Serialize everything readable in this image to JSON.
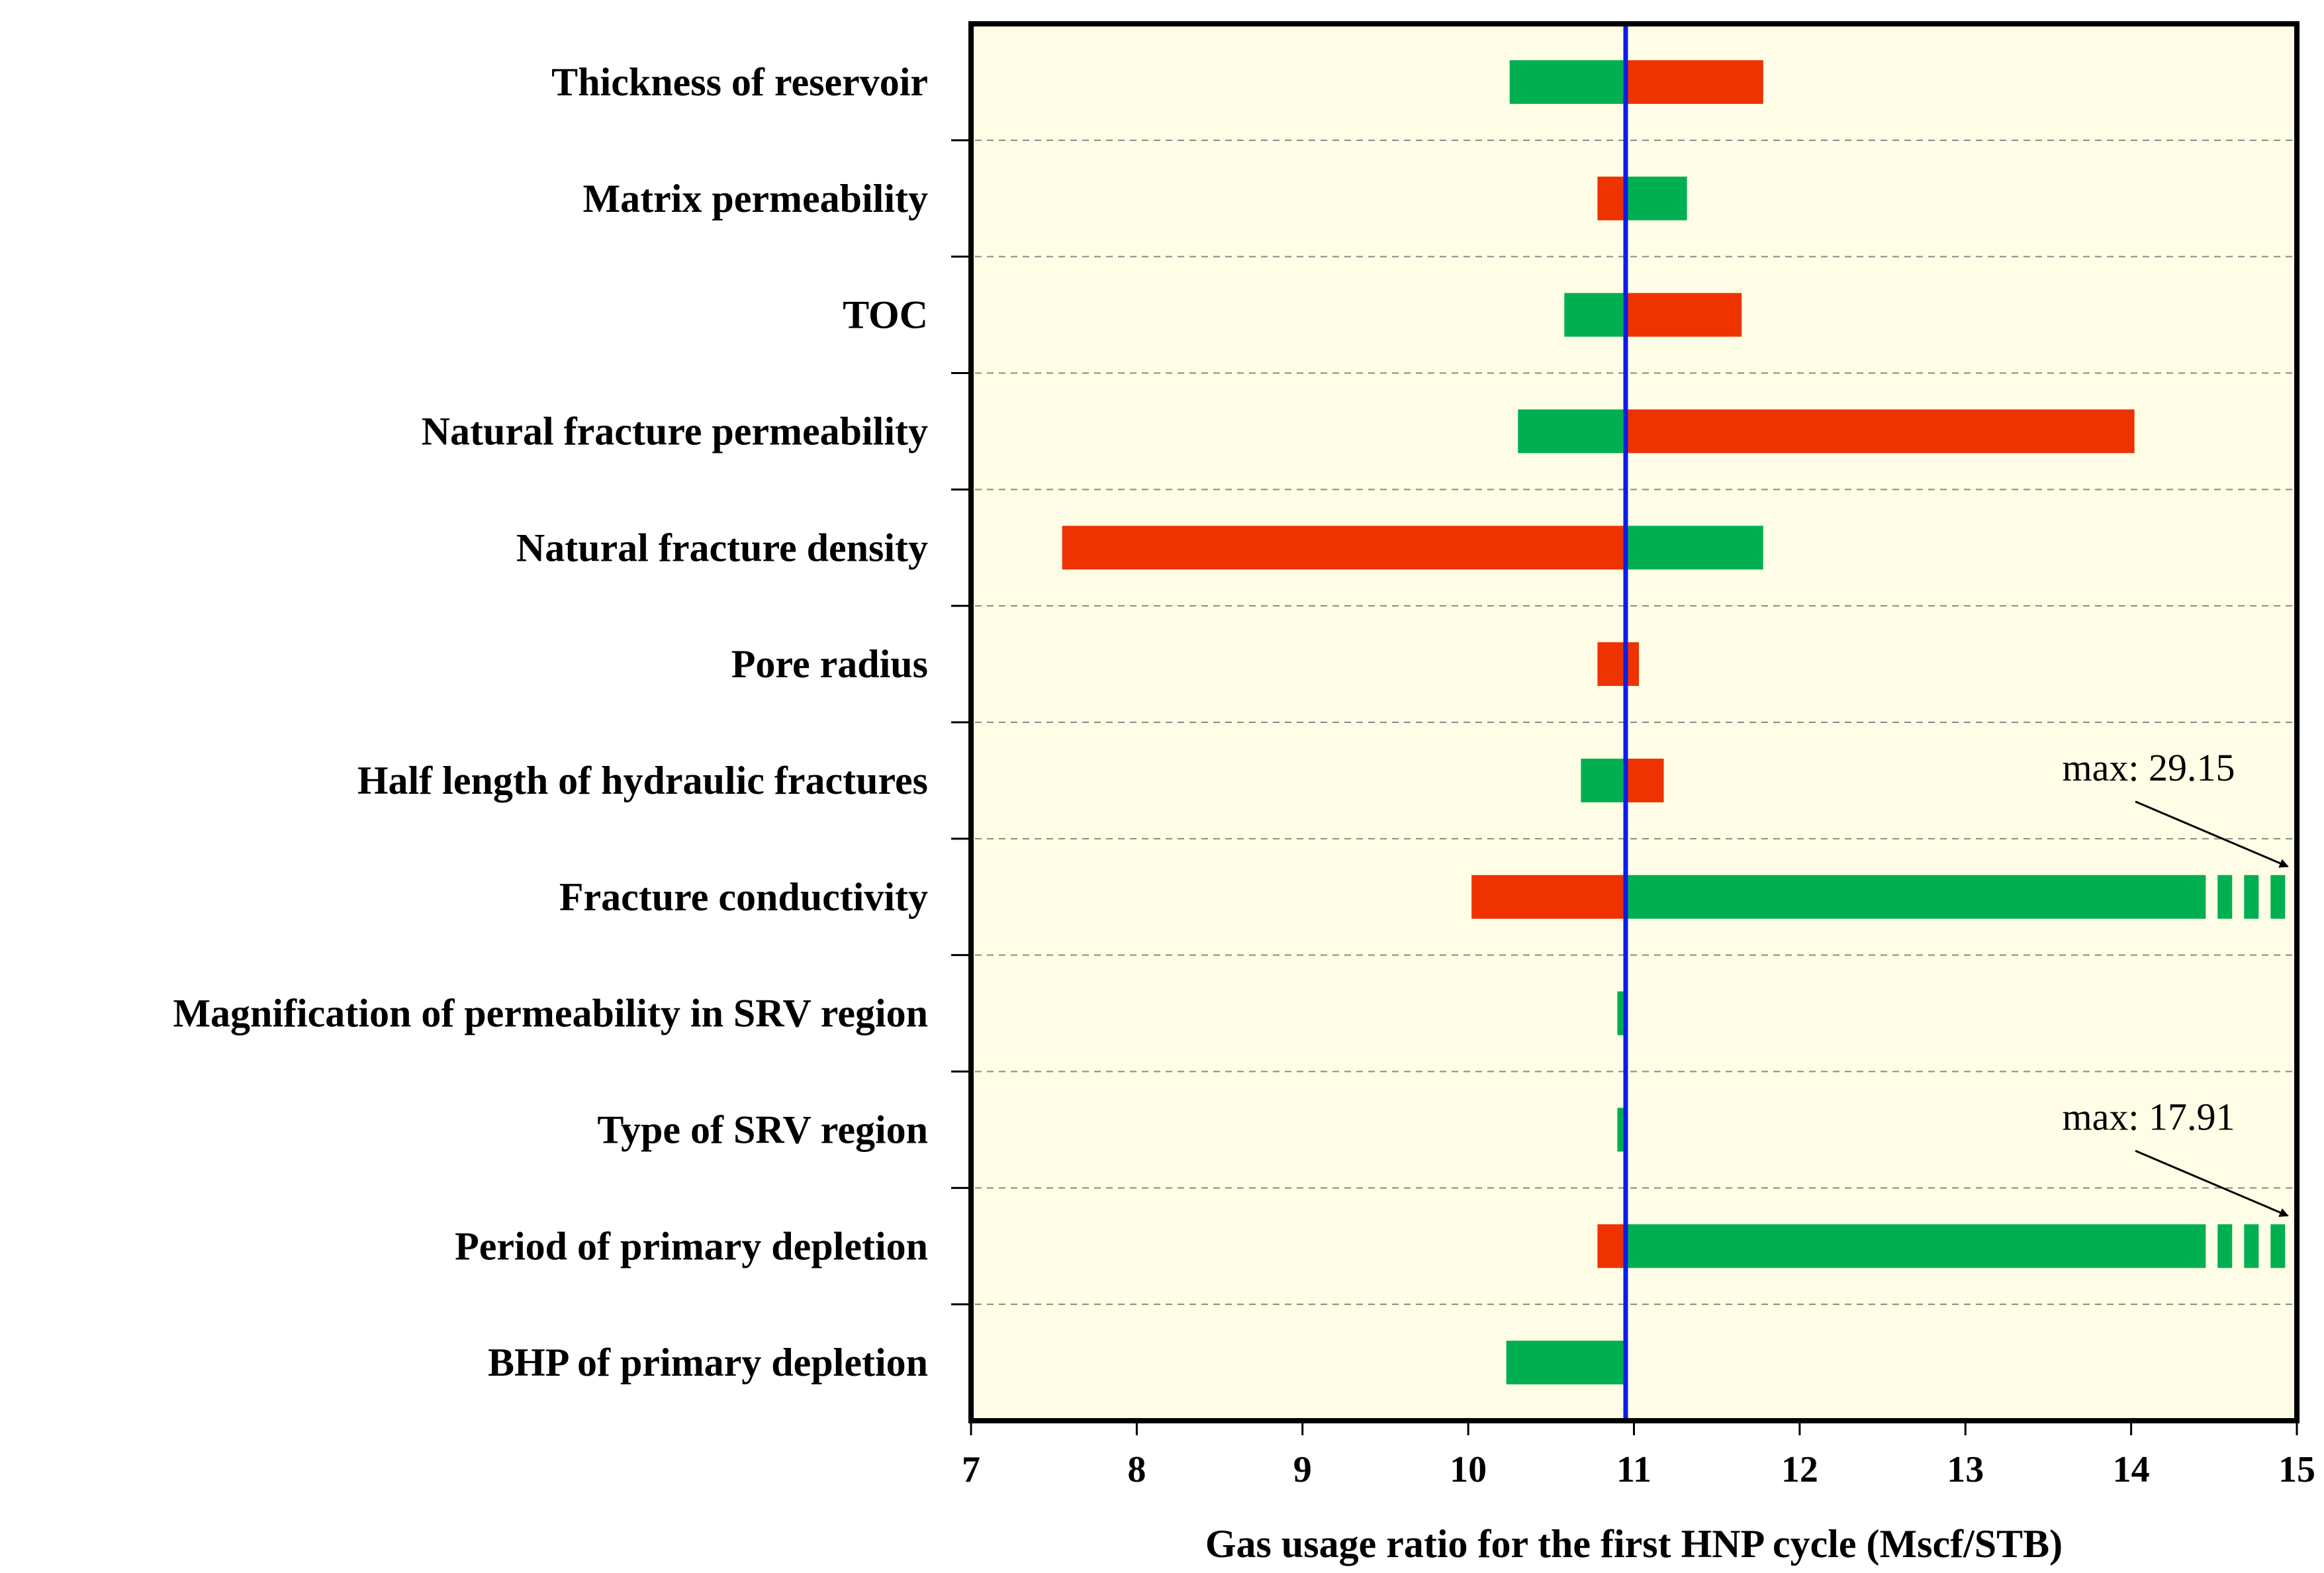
{
  "chart_data": {
    "type": "bar",
    "orientation": "horizontal",
    "chart_style": "tornado",
    "xlabel": "Gas usage ratio for the first HNP cycle (Mscf/STB)",
    "xlim": [
      7,
      15
    ],
    "xticks": [
      "7",
      "8",
      "9",
      "10",
      "11",
      "12",
      "13",
      "14",
      "15"
    ],
    "base_value": 10.95,
    "categories": [
      "Thickness of reservoir",
      "Matrix permeability",
      "TOC",
      "Natural fracture permeability",
      "Natural fracture density",
      "Pore radius",
      "Half length of hydraulic fractures",
      "Fracture conductivity",
      "Magnification of permeability in SRV region",
      "Type of SRV region",
      "Period of primary depletion",
      "BHP of primary depletion"
    ],
    "bars": [
      {
        "left": 10.25,
        "right": 11.78,
        "left_color": "green",
        "right_color": "red"
      },
      {
        "left": 10.78,
        "right": 11.32,
        "left_color": "red",
        "right_color": "green"
      },
      {
        "left": 10.58,
        "right": 11.65,
        "left_color": "green",
        "right_color": "red"
      },
      {
        "left": 10.3,
        "right": 14.02,
        "left_color": "green",
        "right_color": "red"
      },
      {
        "left": 7.55,
        "right": 11.78,
        "left_color": "red",
        "right_color": "green"
      },
      {
        "left": 10.78,
        "right": 11.03,
        "left_color": "red",
        "right_color": "red"
      },
      {
        "left": 10.68,
        "right": 11.18,
        "left_color": "green",
        "right_color": "red"
      },
      {
        "left": 10.02,
        "right": 29.15,
        "left_color": "red",
        "right_color": "green",
        "truncated": true
      },
      {
        "left": 10.9,
        "right": 10.93,
        "left_color": "green",
        "right_color": "green"
      },
      {
        "left": 10.9,
        "right": 10.93,
        "left_color": "green",
        "right_color": "green"
      },
      {
        "left": 10.78,
        "right": 17.91,
        "left_color": "red",
        "right_color": "green",
        "truncated": true
      },
      {
        "left": 10.23,
        "right": 10.95,
        "left_color": "green",
        "right_color": "green"
      }
    ],
    "annotations": [
      {
        "text": "max: 29.15",
        "category": "Fracture conductivity"
      },
      {
        "text": "max: 17.91",
        "category": "Period of primary depletion"
      }
    ],
    "grid": "dashed horizontal separators",
    "legend": "none",
    "colors": {
      "background": "#fffde6",
      "green": "#00b050",
      "red": "#ee3300",
      "base_line": "#0a1ee6",
      "frame": "#000000",
      "separator": "#888888"
    }
  }
}
